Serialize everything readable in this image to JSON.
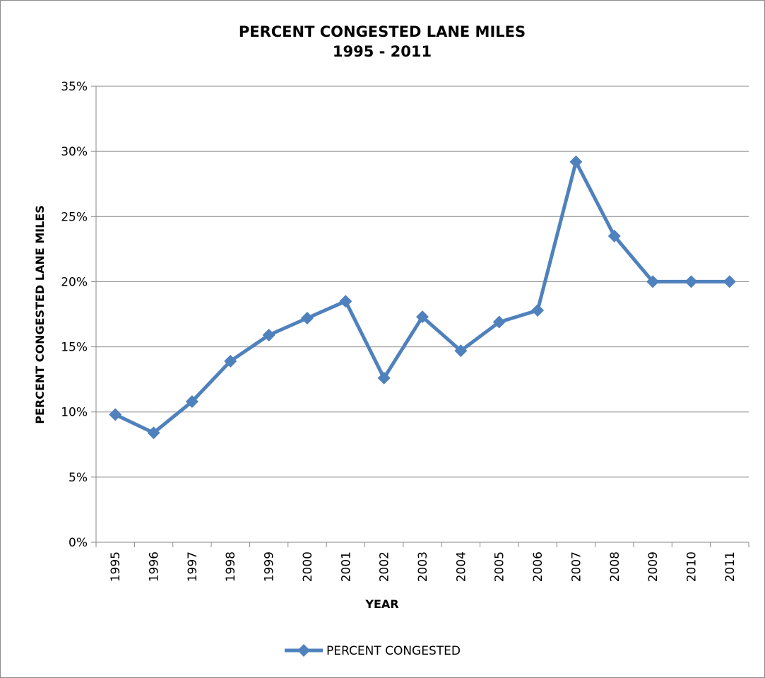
{
  "chart_data": {
    "type": "line",
    "title_lines": [
      "PERCENT CONGESTED LANE MILES",
      "1995 - 2011"
    ],
    "xlabel": "YEAR",
    "ylabel": "PERCENT CONGESTED LANE MILES",
    "categories": [
      "1995",
      "1996",
      "1997",
      "1998",
      "1999",
      "2000",
      "2001",
      "2002",
      "2003",
      "2004",
      "2005",
      "2006",
      "2007",
      "2008",
      "2009",
      "2010",
      "2011"
    ],
    "yticks": [
      "0%",
      "5%",
      "10%",
      "15%",
      "20%",
      "25%",
      "30%",
      "35%"
    ],
    "ylim": [
      0,
      35
    ],
    "y_unit": "%",
    "grid": "horizontal",
    "legend_position": "bottom",
    "series": [
      {
        "name": "PERCENT CONGESTED",
        "color": "#4f81bd",
        "marker": "diamond",
        "values": [
          9.8,
          8.4,
          10.8,
          13.9,
          15.9,
          17.2,
          18.5,
          12.6,
          17.3,
          14.7,
          16.9,
          17.8,
          29.2,
          23.5,
          20.0,
          20.0,
          20.0
        ]
      }
    ]
  }
}
